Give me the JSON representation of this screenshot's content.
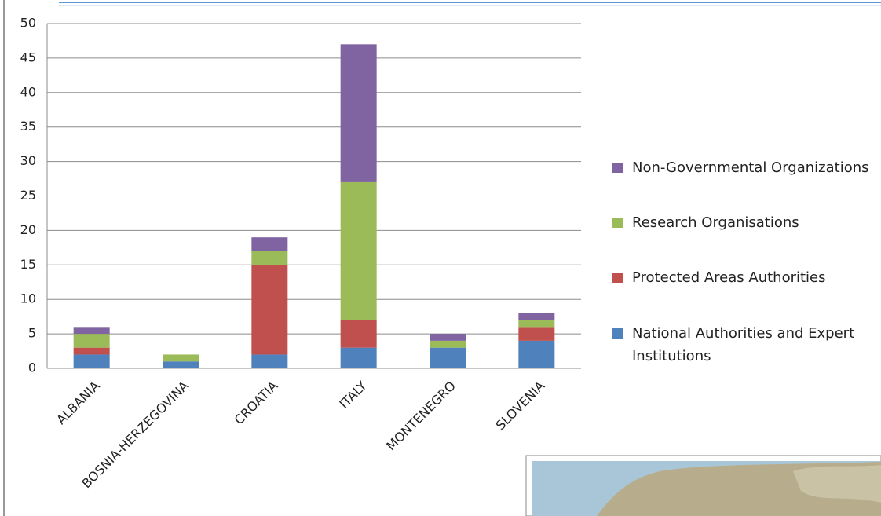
{
  "chart_data": {
    "type": "stacked_bar",
    "categories": [
      "ALBANIA",
      "BOSNIA-HERZEGOVINA",
      "CROATIA",
      "ITALY",
      "MONTENEGRO",
      "SLOVENIA"
    ],
    "series": [
      {
        "name": "National Authorities and Expert Institutions",
        "color": "#4f81bd",
        "values": [
          2,
          1,
          2,
          3,
          3,
          4
        ]
      },
      {
        "name": "Protected Areas Authorities",
        "color": "#c0504d",
        "values": [
          1,
          0,
          13,
          4,
          0,
          2
        ]
      },
      {
        "name": "Research Organisations",
        "color": "#9bbb59",
        "values": [
          2,
          1,
          2,
          20,
          1,
          1
        ]
      },
      {
        "name": "Non-Governmental Organizations",
        "color": "#8064a2",
        "values": [
          1,
          0,
          2,
          20,
          1,
          1
        ]
      }
    ],
    "ylim": [
      0,
      50
    ],
    "yticks": [
      0,
      5,
      10,
      15,
      20,
      25,
      30,
      35,
      40,
      45,
      50
    ],
    "grid": true,
    "legend": "right"
  }
}
